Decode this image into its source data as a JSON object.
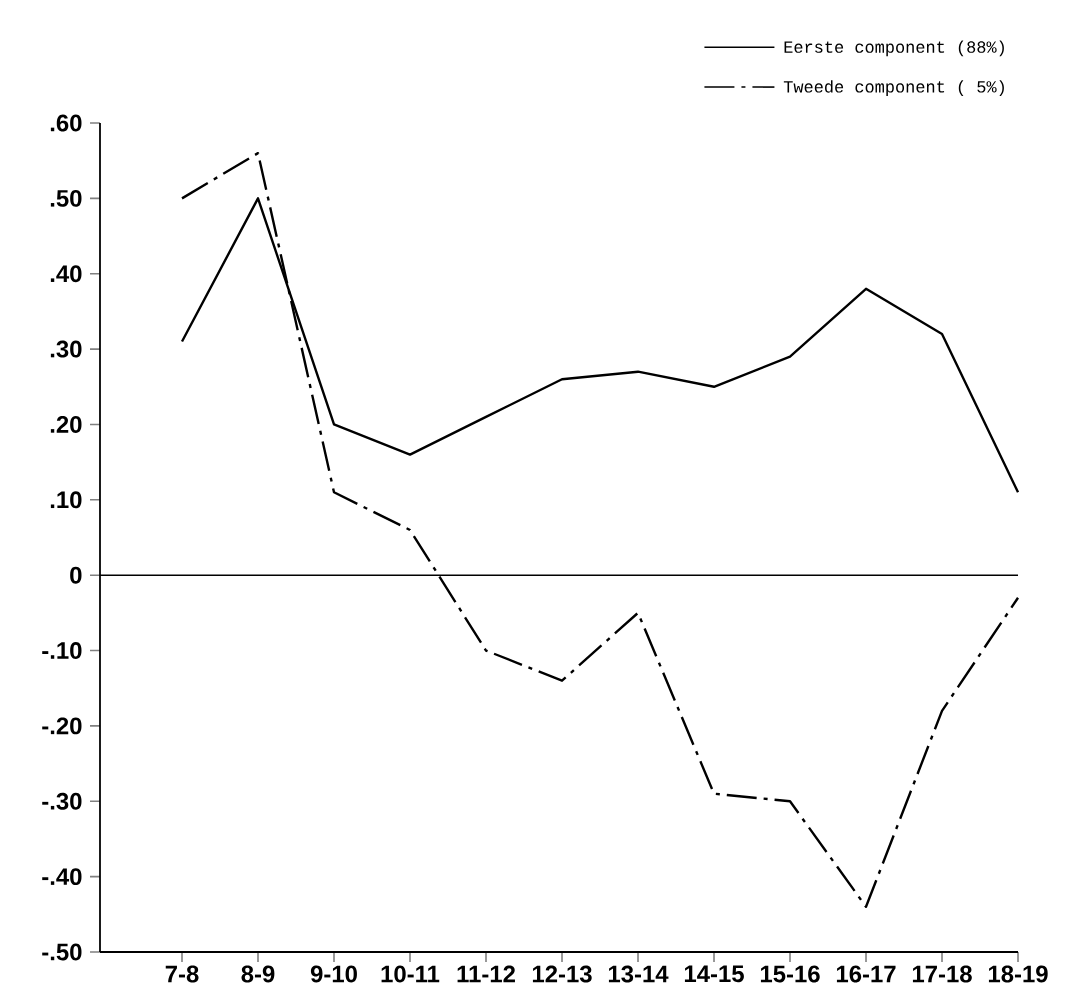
{
  "chart_data": {
    "type": "line",
    "categories": [
      "7-8",
      "8-9",
      "9-10",
      "10-11",
      "11-12",
      "12-13",
      "13-14",
      "14-15",
      "15-16",
      "16-17",
      "17-18",
      "18-19"
    ],
    "series": [
      {
        "name": "Eerste component (88%)",
        "color": "#000000",
        "line_style": "solid",
        "values": [
          0.31,
          0.5,
          0.2,
          0.16,
          0.21,
          0.26,
          0.27,
          0.25,
          0.29,
          0.38,
          0.32,
          0.11
        ]
      },
      {
        "name": "Tweede component ( 5%)",
        "color": "#000000",
        "line_style": "dashdot",
        "values": [
          0.5,
          0.56,
          0.11,
          0.06,
          -0.1,
          -0.14,
          -0.05,
          -0.29,
          -0.3,
          -0.44,
          -0.18,
          -0.03
        ]
      }
    ],
    "ylim": [
      -0.5,
      0.6
    ],
    "yticks": [
      {
        "value": 0.6,
        "label": ".60"
      },
      {
        "value": 0.5,
        "label": ".50"
      },
      {
        "value": 0.4,
        "label": ".40"
      },
      {
        "value": 0.3,
        "label": ".30"
      },
      {
        "value": 0.2,
        "label": ".20"
      },
      {
        "value": 0.1,
        "label": ".10"
      },
      0,
      {
        "value": -0.1,
        "label": "-.10"
      },
      {
        "value": -0.2,
        "label": "-.20"
      },
      {
        "value": -0.3,
        "label": "-.30"
      },
      {
        "value": -0.4,
        "label": "-.40"
      },
      {
        "value": -0.5,
        "label": "-.50"
      }
    ],
    "ref_lines": [
      {
        "axis": "y",
        "value": 0
      }
    ],
    "legend": "top right",
    "grid": false,
    "marker": "none"
  }
}
